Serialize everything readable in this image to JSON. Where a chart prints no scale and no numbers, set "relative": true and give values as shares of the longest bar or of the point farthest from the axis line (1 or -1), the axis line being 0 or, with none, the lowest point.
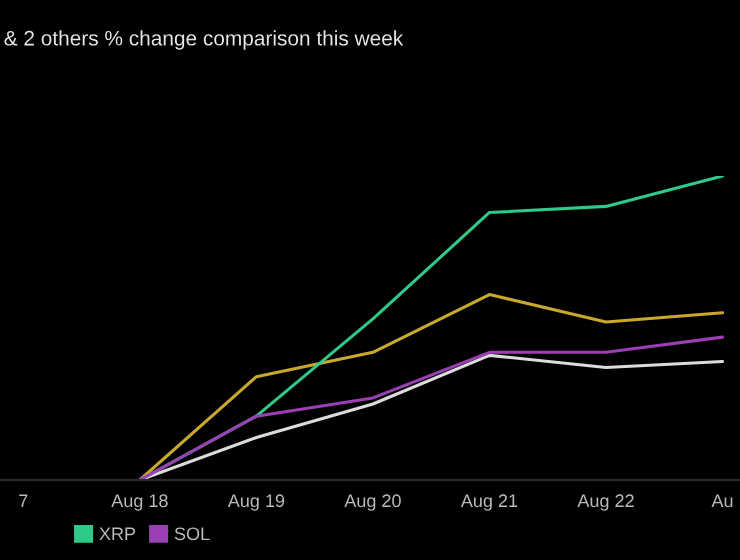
{
  "chart_data": {
    "type": "line",
    "title": "& 2 others % change comparison this week",
    "relative": true,
    "categories": [
      "7",
      "Aug 18",
      "Aug 19",
      "Aug 20",
      "Aug 21",
      "Aug 22",
      "Au"
    ],
    "series": [
      {
        "color": "#c9a92c",
        "values": [
          null,
          0,
          0.34,
          0.42,
          0.61,
          0.52,
          0.55
        ]
      },
      {
        "color": "#dcdcdc",
        "values": [
          null,
          0,
          0.14,
          0.25,
          0.41,
          0.37,
          0.39
        ]
      },
      {
        "name": "XRP",
        "color": "#2fc98a",
        "values": [
          null,
          0,
          0.21,
          0.53,
          0.88,
          0.9,
          1.0
        ]
      },
      {
        "name": "SOL",
        "color": "#9b3fb5",
        "values": [
          null,
          0,
          0.21,
          0.27,
          0.42,
          0.42,
          0.47
        ]
      }
    ],
    "legend": "bottom",
    "grid": false,
    "marker": "none",
    "line_style": "solid"
  }
}
